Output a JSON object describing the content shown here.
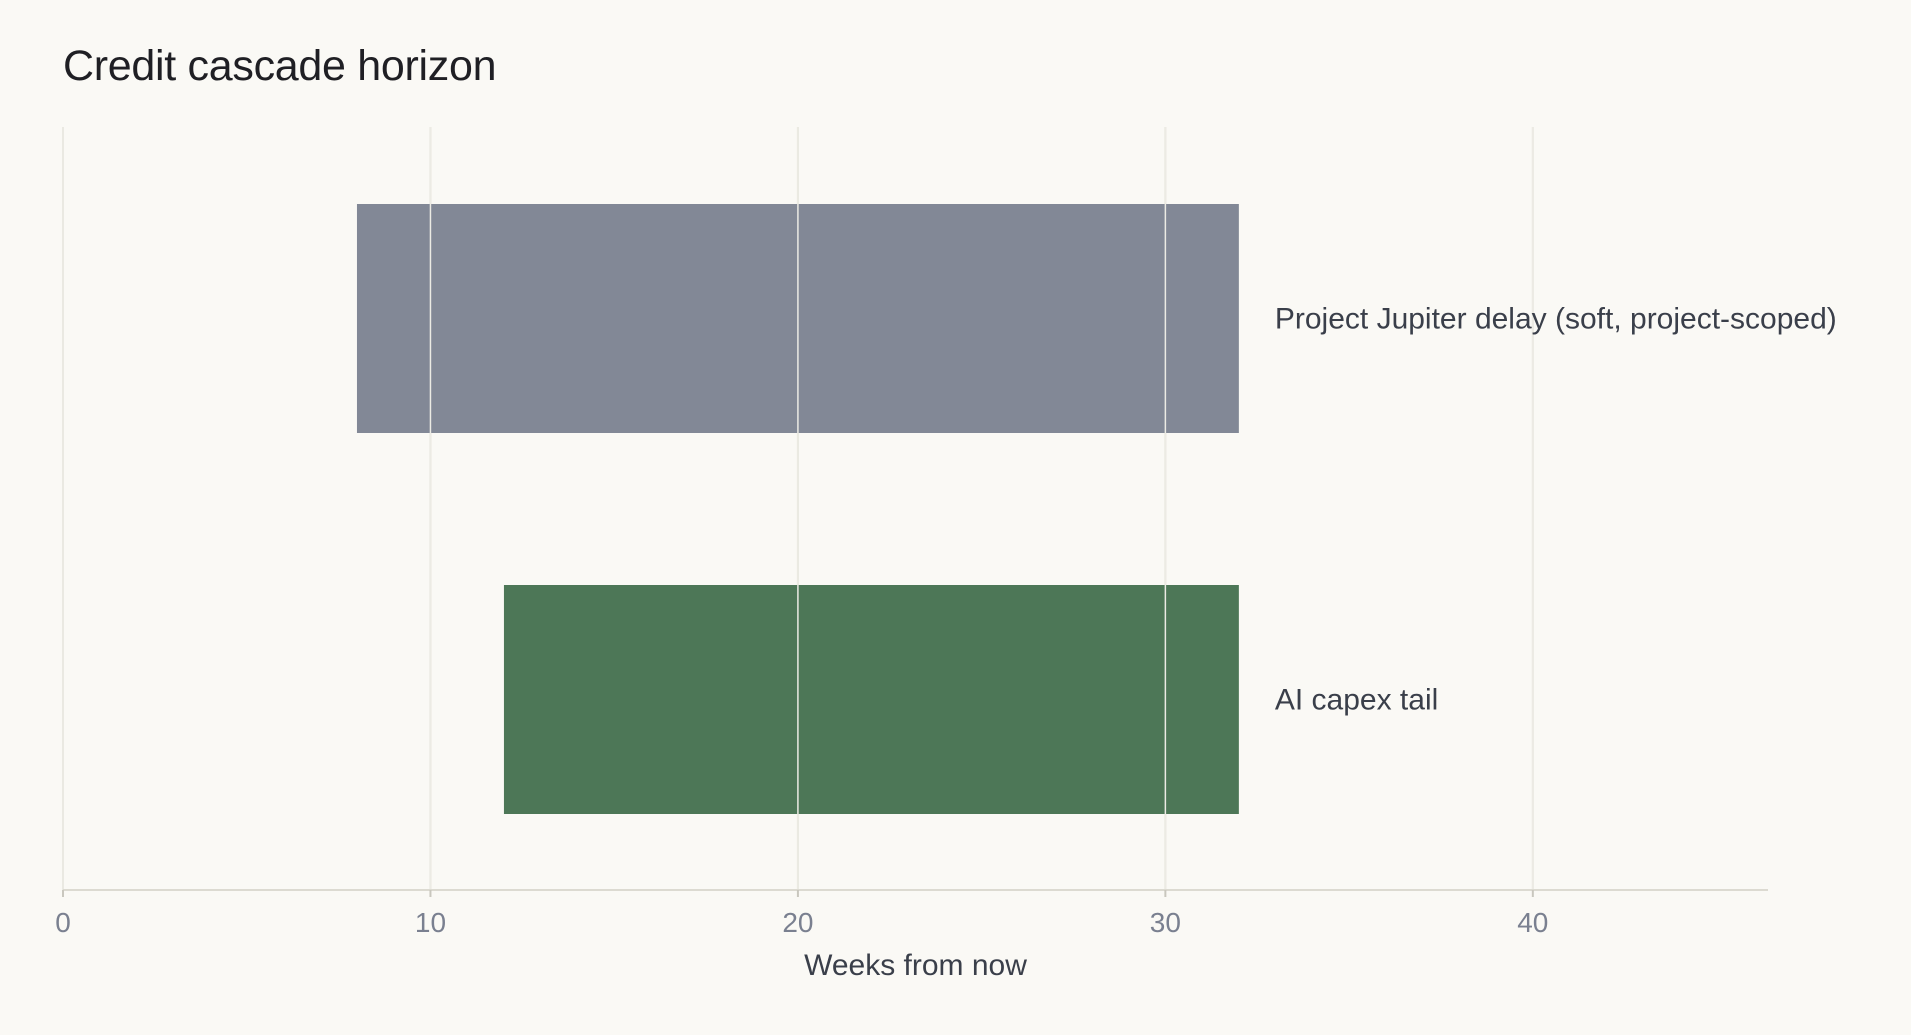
{
  "chart_data": {
    "type": "bar",
    "orientation": "horizontal-range",
    "title": "Credit cascade horizon",
    "xlabel": "Weeks from now",
    "ylabel": "",
    "xlim": [
      0,
      46.4
    ],
    "xticks": [
      0,
      10,
      20,
      30,
      40
    ],
    "grid": true,
    "legend": "none",
    "bars": [
      {
        "label": "Project Jupiter delay (soft, project-scoped)",
        "start": 8,
        "end": 32,
        "color": "#828896"
      },
      {
        "label": "AI capex tail",
        "start": 12,
        "end": 32,
        "color": "#4d7757"
      }
    ]
  }
}
